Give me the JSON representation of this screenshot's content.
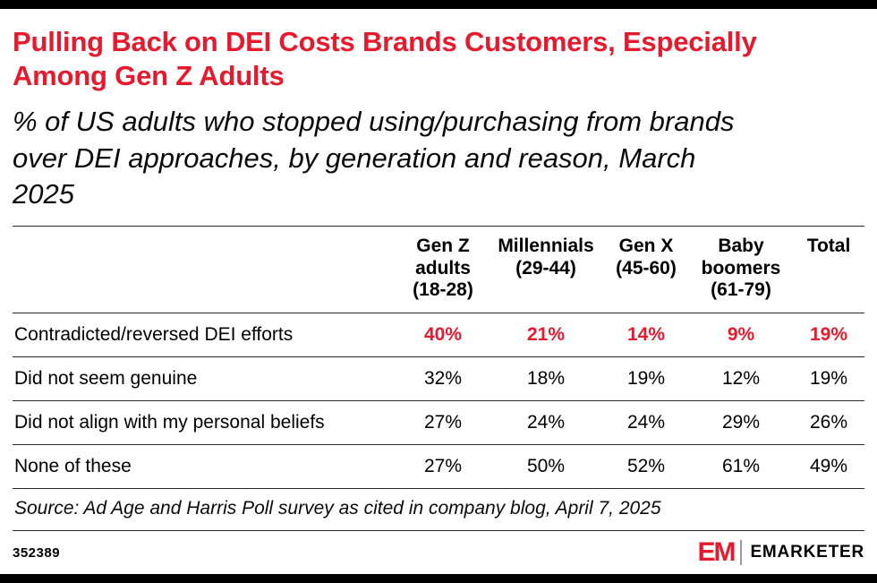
{
  "colors": {
    "accent_red": "#e8192d",
    "bar_black": "#000000",
    "rule_gray": "#2b2b2b"
  },
  "header": {
    "title": "Pulling Back on DEI Costs Brands Customers, Especially Among Gen Z Adults",
    "subtitle": "% of US adults who stopped using/purchasing from brands over DEI approaches, by generation and reason, March 2025"
  },
  "chart_data": {
    "type": "table",
    "title": "Pulling Back on DEI Costs Brands Customers, Especially Among Gen Z Adults",
    "subtitle": "% of US adults who stopped using/purchasing from brands over DEI approaches, by generation and reason, March 2025",
    "columns": [
      "Gen Z adults (18-28)",
      "Millennials (29-44)",
      "Gen X (45-60)",
      "Baby boomers (61-79)",
      "Total"
    ],
    "rows": [
      {
        "label": "Contradicted/reversed DEI efforts",
        "values": [
          "40%",
          "21%",
          "14%",
          "9%",
          "19%"
        ],
        "highlight": true
      },
      {
        "label": "Did not seem genuine",
        "values": [
          "32%",
          "18%",
          "19%",
          "12%",
          "19%"
        ],
        "highlight": false
      },
      {
        "label": "Did not align with my personal beliefs",
        "values": [
          "27%",
          "24%",
          "24%",
          "29%",
          "26%"
        ],
        "highlight": false
      },
      {
        "label": "None of these",
        "values": [
          "27%",
          "50%",
          "52%",
          "61%",
          "49%"
        ],
        "highlight": false
      }
    ],
    "source": "Source: Ad Age and Harris Poll survey as cited in company blog, April 7, 2025"
  },
  "footer": {
    "chart_id": "352389",
    "logo_em": "EM",
    "brand": "EMARKETER"
  }
}
